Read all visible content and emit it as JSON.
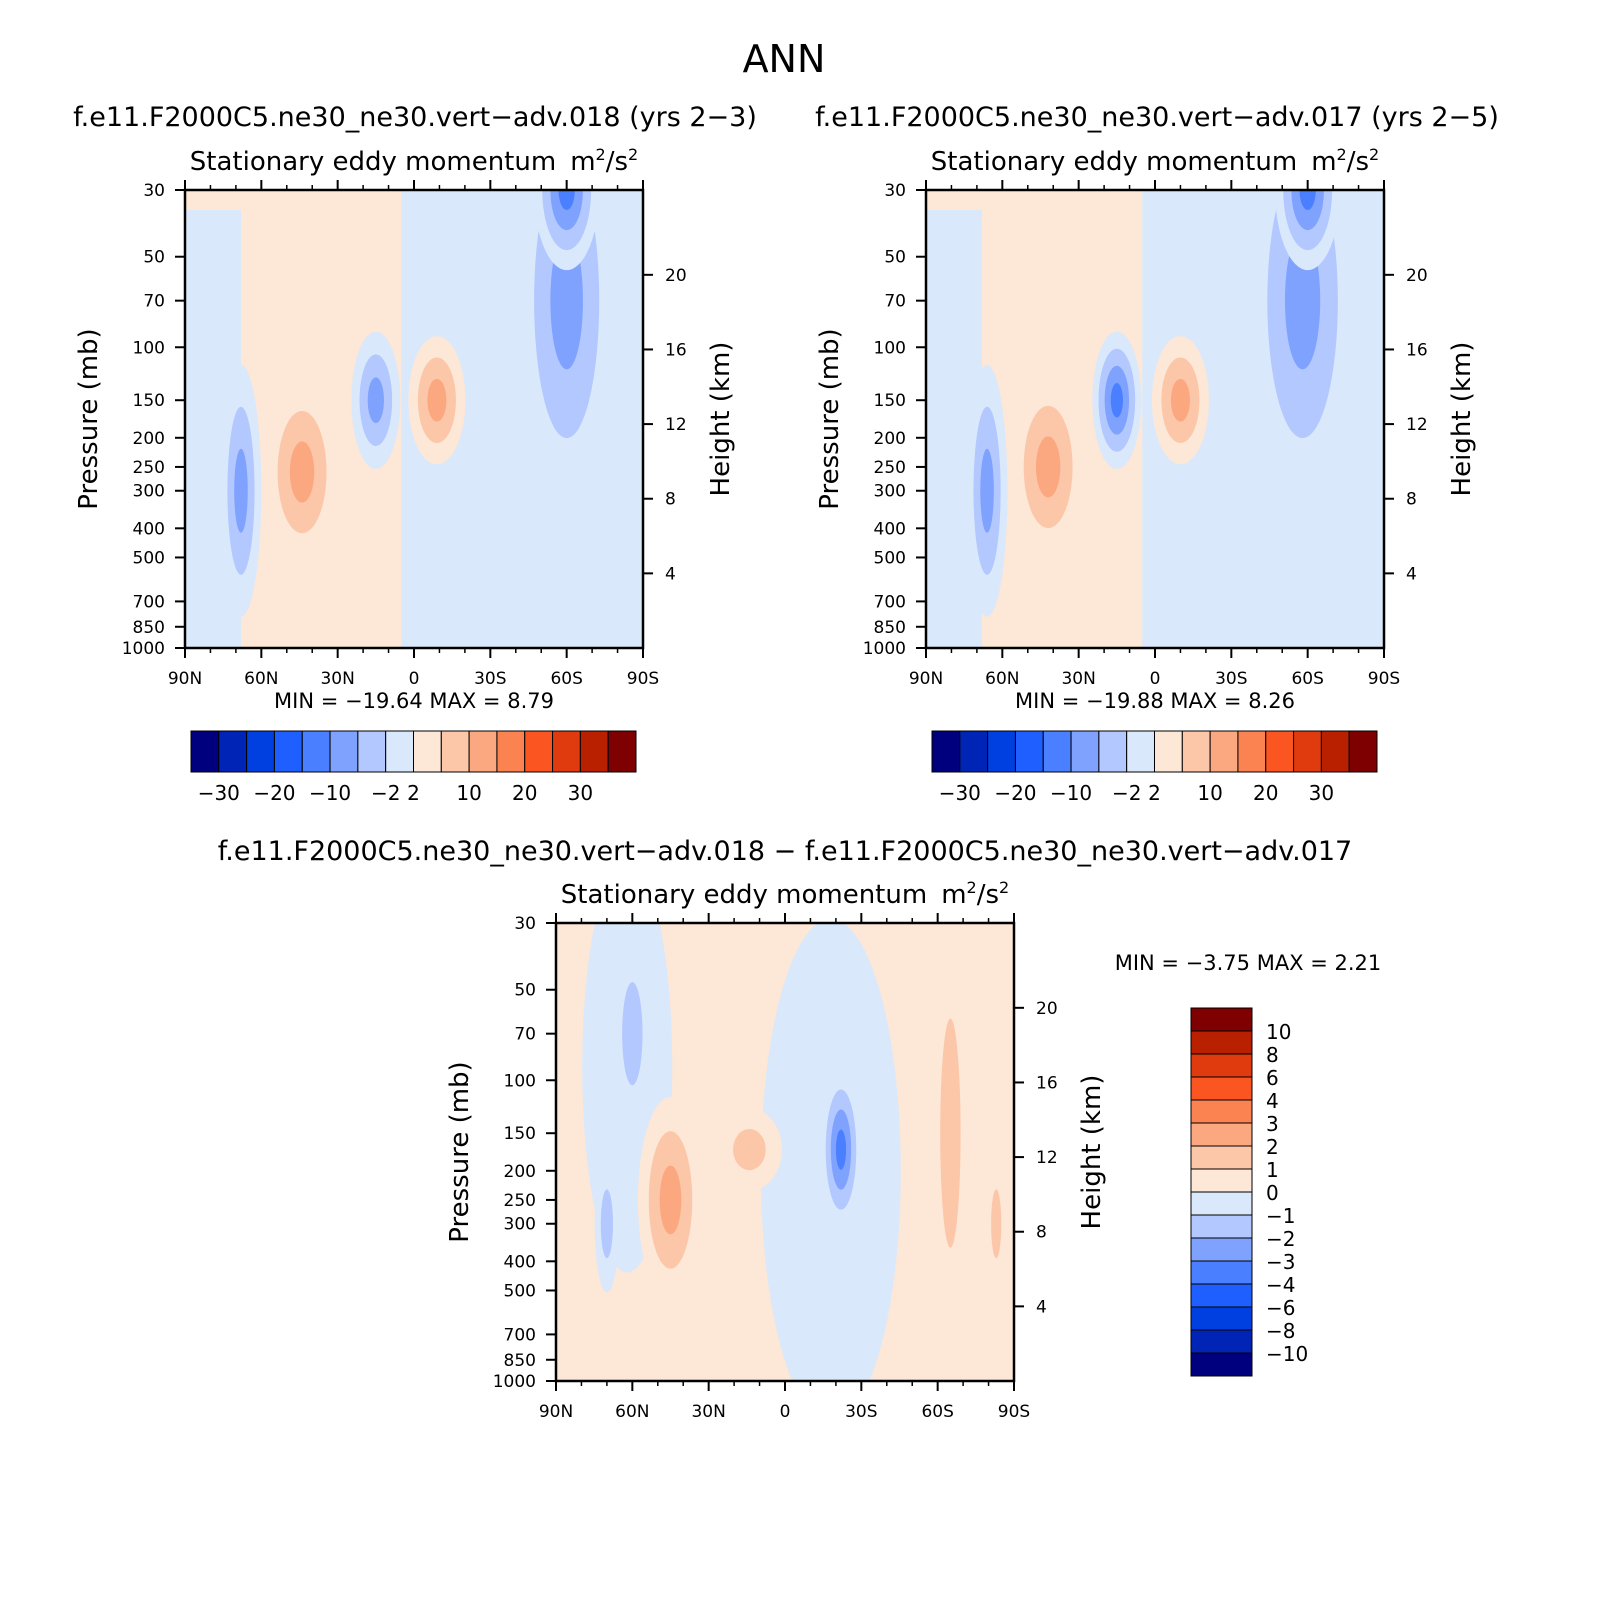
{
  "figure_title": "ANN",
  "palette": [
    "#00007f",
    "#0025b6",
    "#0040e0",
    "#1f5fff",
    "#4a7fff",
    "#7fa2ff",
    "#b2c8ff",
    "#dae8fb",
    "#fde7d6",
    "#fcc6a8",
    "#fba881",
    "#fb8352",
    "#fb5522",
    "#e03a0f",
    "#b82000",
    "#7f0000"
  ],
  "chart_data": [
    {
      "type": "contour",
      "case_title": "f.e11.F2000C5.ne30_ne30.vert−adv.018 (yrs 2−3)",
      "title": "Stationary eddy momentum",
      "units_text": "m",
      "units_sup1": "2",
      "units_mid": "/s",
      "units_sup2": "2",
      "ylabel": "Pressure (mb)",
      "ylabel_right": "Height (km)",
      "x_ticks": [
        "90N",
        "60N",
        "30N",
        "0",
        "30S",
        "60S",
        "90S"
      ],
      "y_ticks": [
        "30",
        "50",
        "70",
        "100",
        "150",
        "200",
        "250",
        "300",
        "400",
        "500",
        "700",
        "850",
        "1000"
      ],
      "y_ticks_right": [
        "20",
        "16",
        "12",
        "8",
        "4"
      ],
      "min_text": "MIN = −19.64   MAX =    8.79",
      "min": -19.64,
      "max": 8.79,
      "levels": [
        -30,
        -25,
        -20,
        -15,
        -10,
        -5,
        -2,
        0,
        2,
        5,
        10,
        15,
        20,
        25,
        30
      ],
      "colorbar_labels": [
        "−30",
        "−20",
        "−10",
        "−2",
        "2",
        "10",
        "20",
        "30"
      ],
      "fields": [
        {
          "lat": -68,
          "p": 300,
          "w": 5,
          "h": 0.55,
          "v": -9
        },
        {
          "lat": -44,
          "p": 260,
          "w": 9,
          "h": 0.4,
          "v": 9
        },
        {
          "lat": -15,
          "p": 150,
          "w": 6,
          "h": 0.3,
          "v": -10
        },
        {
          "lat": 9,
          "p": 150,
          "w": 7,
          "h": 0.28,
          "v": 9
        },
        {
          "lat": 60,
          "p": 70,
          "w": 12,
          "h": 0.9,
          "v": -9
        },
        {
          "lat": 60,
          "p": 30,
          "w": 8,
          "h": 0.35,
          "v": -14
        }
      ]
    },
    {
      "type": "contour",
      "case_title": "f.e11.F2000C5.ne30_ne30.vert−adv.017 (yrs 2−5)",
      "title": "Stationary eddy momentum",
      "units_text": "m",
      "units_sup1": "2",
      "units_mid": "/s",
      "units_sup2": "2",
      "ylabel": "Pressure (mb)",
      "ylabel_right": "Height (km)",
      "x_ticks": [
        "90N",
        "60N",
        "30N",
        "0",
        "30S",
        "60S",
        "90S"
      ],
      "y_ticks": [
        "30",
        "50",
        "70",
        "100",
        "150",
        "200",
        "250",
        "300",
        "400",
        "500",
        "700",
        "850",
        "1000"
      ],
      "y_ticks_right": [
        "20",
        "16",
        "12",
        "8",
        "4"
      ],
      "min_text": "MIN = −19.88   MAX =    8.26",
      "min": -19.88,
      "max": 8.26,
      "levels": [
        -30,
        -25,
        -20,
        -15,
        -10,
        -5,
        -2,
        0,
        2,
        5,
        10,
        15,
        20,
        25,
        30
      ],
      "colorbar_labels": [
        "−30",
        "−20",
        "−10",
        "−2",
        "2",
        "10",
        "20",
        "30"
      ],
      "fields": [
        {
          "lat": -66,
          "p": 300,
          "w": 5,
          "h": 0.55,
          "v": -7
        },
        {
          "lat": -42,
          "p": 250,
          "w": 9,
          "h": 0.4,
          "v": 9
        },
        {
          "lat": -15,
          "p": 150,
          "w": 6,
          "h": 0.3,
          "v": -11
        },
        {
          "lat": 10,
          "p": 150,
          "w": 7,
          "h": 0.28,
          "v": 9
        },
        {
          "lat": 58,
          "p": 70,
          "w": 13,
          "h": 0.9,
          "v": -9
        },
        {
          "lat": 60,
          "p": 30,
          "w": 8,
          "h": 0.35,
          "v": -13
        }
      ]
    },
    {
      "type": "contour",
      "case_title": "f.e11.F2000C5.ne30_ne30.vert−adv.018 − f.e11.F2000C5.ne30_ne30.vert−adv.017",
      "title": "Stationary eddy momentum",
      "units_text": "m",
      "units_sup1": "2",
      "units_mid": "/s",
      "units_sup2": "2",
      "ylabel": "Pressure (mb)",
      "ylabel_right": "Height (km)",
      "x_ticks": [
        "90N",
        "60N",
        "30N",
        "0",
        "30S",
        "60S",
        "90S"
      ],
      "y_ticks": [
        "30",
        "50",
        "70",
        "100",
        "150",
        "200",
        "250",
        "300",
        "400",
        "500",
        "700",
        "850",
        "1000"
      ],
      "y_ticks_right": [
        "20",
        "16",
        "12",
        "8",
        "4"
      ],
      "min_text": "MIN =    −3.75   MAX =     2.21",
      "min": -3.75,
      "max": 2.21,
      "levels": [
        -10,
        -8,
        -6,
        -4,
        -3,
        -2,
        -1,
        0,
        1,
        2,
        3,
        4,
        6,
        8,
        10
      ],
      "colorbar_labels": [
        "10",
        "8",
        "6",
        "4",
        "3",
        "2",
        "1",
        "0",
        "−1",
        "−2",
        "−3",
        "−4",
        "−6",
        "−8",
        "−10"
      ],
      "fields": [
        {
          "lat": -60,
          "p": 70,
          "w": 5,
          "h": 0.45,
          "v": -1.8
        },
        {
          "lat": -70,
          "p": 300,
          "w": 3,
          "h": 0.3,
          "v": -1.6
        },
        {
          "lat": -45,
          "p": 250,
          "w": 8,
          "h": 0.45,
          "v": 2.2
        },
        {
          "lat": -14,
          "p": 170,
          "w": 8,
          "h": 0.18,
          "v": 1.4
        },
        {
          "lat": 22,
          "p": 170,
          "w": 5,
          "h": 0.35,
          "v": -3.5
        },
        {
          "lat": 65,
          "p": 150,
          "w": 5,
          "h": 1.0,
          "v": 1.3
        },
        {
          "lat": 83,
          "p": 300,
          "w": 2.5,
          "h": 0.3,
          "v": 1.5
        }
      ]
    }
  ]
}
